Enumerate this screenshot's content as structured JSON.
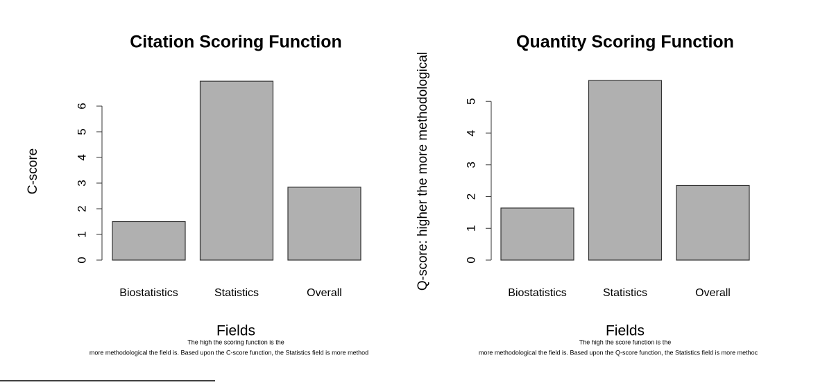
{
  "chart_data": [
    {
      "type": "bar",
      "title": "Citation Scoring Function",
      "x_label": "Fields",
      "y_label": "C-score",
      "categories": [
        "Biostatistics",
        "Statistics",
        "Overall"
      ],
      "values": [
        1.5,
        6.97,
        2.84
      ],
      "color": "#b0b0b0",
      "ylim": [
        0,
        7
      ],
      "yticks": [
        0,
        1,
        2,
        3,
        4,
        5,
        6
      ],
      "caption": [
        "The high the scoring function is the",
        "more methodological the field is. Based upon the C-score function, the Statistics field is more method"
      ]
    },
    {
      "type": "bar",
      "title": "Quantity Scoring Function",
      "x_label": "Fields",
      "y_label": "Q-score: higher the more methodological",
      "categories": [
        "Biostatistics",
        "Statistics",
        "Overall"
      ],
      "values": [
        1.64,
        5.66,
        2.35
      ],
      "color": "#b0b0b0",
      "ylim": [
        0,
        5.66
      ],
      "yticks": [
        0,
        1,
        2,
        3,
        4,
        5
      ],
      "caption": [
        "The high the score function is the",
        "more methodological the field is. Based upon the Q-score function, the Statistics field is more methoc"
      ]
    }
  ]
}
